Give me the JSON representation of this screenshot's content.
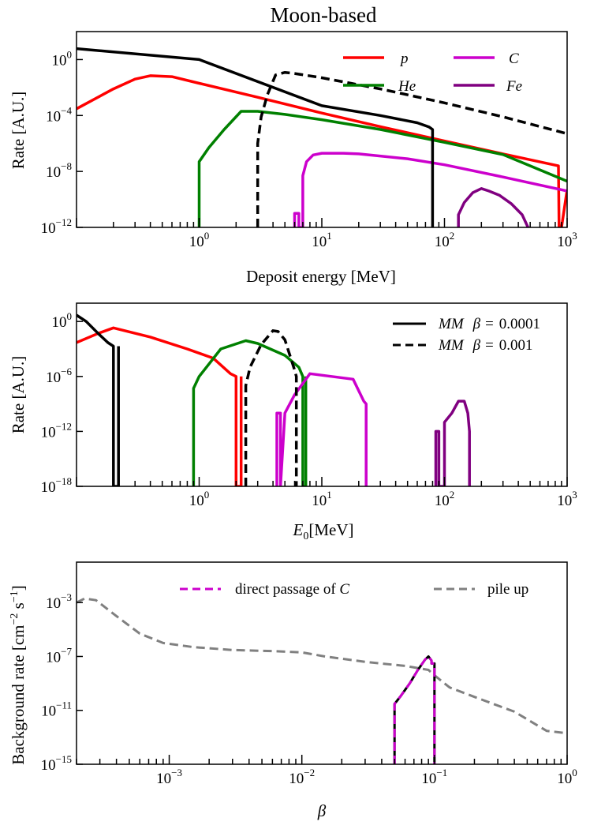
{
  "figure_title": "Moon-based",
  "chart_data": [
    {
      "type": "line",
      "xlabel": "Deposit energy [MeV]",
      "ylabel": "Rate [A.U.]",
      "xscale": "log",
      "yscale": "log",
      "xlim": [
        0.1,
        1000
      ],
      "ylim": [
        1e-12,
        100
      ],
      "xticks": [
        {
          "value": 1,
          "label": "10^0"
        },
        {
          "value": 10,
          "label": "10^1"
        },
        {
          "value": 100,
          "label": "10^2"
        },
        {
          "value": 1000,
          "label": "10^3"
        }
      ],
      "yticks": [
        {
          "value": 1,
          "label": "10^0"
        },
        {
          "value": 0.0001,
          "label": "10^-4"
        },
        {
          "value": 1e-08,
          "label": "10^-8"
        },
        {
          "value": 1e-12,
          "label": "10^-12"
        }
      ],
      "legend_position": "top-right",
      "legend_columns": 2,
      "series": [
        {
          "name": "p",
          "color": "#ff0000",
          "style": "solid",
          "x": [
            0.1,
            0.2,
            0.3,
            0.4,
            0.6,
            1,
            3,
            10,
            30,
            100,
            300,
            850,
            860,
            900,
            1000
          ],
          "y": [
            0.0003,
            0.008,
            0.04,
            0.07,
            0.06,
            0.02,
            0.002,
            0.00015,
            1.6e-05,
            1.5e-06,
            1.8e-07,
            2.5e-08,
            1e-12,
            1e-12,
            5e-10
          ]
        },
        {
          "name": "He",
          "color": "#008000",
          "style": "solid",
          "x": [
            1,
            1,
            1.2,
            1.6,
            2.2,
            3,
            5,
            10,
            30,
            100,
            300,
            1000
          ],
          "y": [
            1e-12,
            5e-08,
            5e-07,
            1e-05,
            0.0002,
            0.0002,
            0.00012,
            5e-05,
            1e-05,
            1.2e-06,
            1.6e-07,
            2e-09
          ]
        },
        {
          "name": "C",
          "color": "#cc00cc",
          "style": "solid",
          "x": [
            6,
            6,
            6.5,
            6.5,
            7,
            7,
            7.5,
            8.5,
            10,
            15,
            20,
            50,
            100,
            300,
            1000
          ],
          "y": [
            1e-12,
            1e-11,
            1e-11,
            1e-12,
            1e-12,
            5e-09,
            5e-08,
            1.5e-07,
            2e-07,
            2e-07,
            1.8e-07,
            8e-08,
            3e-08,
            4e-09,
            4e-10
          ]
        },
        {
          "name": "Fe",
          "color": "#800080",
          "style": "solid",
          "x": [
            130,
            130,
            145,
            170,
            200,
            230,
            280,
            350,
            430,
            480,
            490
          ],
          "y": [
            1e-12,
            8e-12,
            6e-11,
            3e-10,
            6e-10,
            4e-10,
            2e-10,
            5e-11,
            8e-12,
            1e-12,
            1e-12
          ]
        },
        {
          "name": "MM beta=0.0001",
          "color": "#000000",
          "style": "solid",
          "x": [
            0.1,
            1,
            10,
            30,
            60,
            75,
            80,
            80
          ],
          "y": [
            6,
            1,
            0.0005,
            0.0001,
            3e-05,
            1.5e-05,
            1e-05,
            1e-12
          ]
        },
        {
          "name": "MM beta=0.001",
          "color": "#000000",
          "style": "dashed",
          "x": [
            3,
            3,
            3.2,
            3.6,
            4.2,
            5,
            6,
            10,
            30,
            100,
            300,
            1000
          ],
          "y": [
            1e-12,
            1e-06,
            8e-05,
            0.003,
            0.08,
            0.12,
            0.1,
            0.05,
            0.008,
            0.0008,
            8e-05,
            5e-06
          ]
        }
      ]
    },
    {
      "type": "line",
      "xlabel": "E0[MeV]",
      "xlabel_main": "E",
      "xlabel_sub": "0",
      "xlabel_tail": "[MeV]",
      "ylabel": "Rate [A.U.]",
      "xscale": "log",
      "yscale": "log",
      "xlim": [
        0.1,
        1000
      ],
      "ylim": [
        1e-18,
        100
      ],
      "xticks": [
        {
          "value": 1,
          "label": "10^0"
        },
        {
          "value": 10,
          "label": "10^1"
        },
        {
          "value": 100,
          "label": "10^2"
        },
        {
          "value": 1000,
          "label": "10^3"
        }
      ],
      "yticks": [
        {
          "value": 1,
          "label": "10^0"
        },
        {
          "value": 1e-06,
          "label": "10^-6"
        },
        {
          "value": 1e-12,
          "label": "10^-12"
        },
        {
          "value": 1e-18,
          "label": "10^-18"
        }
      ],
      "legend_position": "top-right",
      "legend_entries": [
        {
          "mm": "MM",
          "beta": "β =",
          "value": "0.0001",
          "style": "solid"
        },
        {
          "mm": "MM",
          "beta": "β =",
          "value": "0.001",
          "style": "dashed"
        }
      ],
      "series": [
        {
          "name": "p",
          "color": "#ff0000",
          "style": "solid",
          "x": [
            0.1,
            0.15,
            0.2,
            0.4,
            0.8,
            1.3,
            1.8,
            2,
            2,
            2.2,
            2.2
          ],
          "y": [
            0.005,
            0.05,
            0.2,
            0.02,
            0.001,
            0.0001,
            2e-06,
            1e-06,
            1e-18,
            1e-18,
            1e-06
          ]
        },
        {
          "name": "He",
          "color": "#008000",
          "style": "solid",
          "x": [
            0.9,
            0.9,
            1,
            1.5,
            2.4,
            3,
            5,
            6.5,
            7,
            7,
            7.4,
            7.4
          ],
          "y": [
            1e-18,
            5e-08,
            1e-06,
            0.001,
            0.008,
            0.004,
            0.0002,
            1e-05,
            1e-06,
            1e-18,
            1e-18,
            1e-06
          ]
        },
        {
          "name": "C",
          "color": "#cc00cc",
          "style": "solid",
          "x": [
            4.3,
            4.3,
            4.6,
            4.6,
            5,
            6,
            8,
            12,
            18,
            22,
            23,
            23
          ],
          "y": [
            1e-18,
            1e-10,
            1e-10,
            1e-18,
            1e-10,
            1e-08,
            2e-06,
            1e-06,
            5e-07,
            2e-09,
            1e-09,
            1e-18
          ]
        },
        {
          "name": "Fe",
          "color": "#800080",
          "style": "solid",
          "x": [
            85,
            85,
            90,
            90,
            100,
            100,
            115,
            130,
            145,
            155,
            160,
            160
          ],
          "y": [
            1e-18,
            1e-12,
            1e-12,
            1e-18,
            1e-18,
            1e-11,
            1e-10,
            2e-09,
            2e-09,
            1e-10,
            1e-12,
            1e-18
          ]
        },
        {
          "name": "MM beta=0.0001",
          "color": "#000000",
          "style": "solid",
          "x": [
            0.1,
            0.12,
            0.15,
            0.18,
            0.2,
            0.2,
            0.22,
            0.22
          ],
          "y": [
            5,
            1,
            0.05,
            0.005,
            0.002,
            1e-18,
            1e-18,
            0.002
          ]
        },
        {
          "name": "MM beta=0.001",
          "color": "#000000",
          "style": "dashed",
          "x": [
            2.4,
            2.4,
            2.6,
            3.2,
            4,
            4.4,
            5,
            6,
            6.2,
            6.2
          ],
          "y": [
            1e-18,
            1e-07,
            1e-05,
            0.003,
            0.1,
            0.08,
            0.01,
            5e-06,
            1e-06,
            1e-18
          ]
        }
      ]
    },
    {
      "type": "line",
      "xlabel": "β",
      "ylabel": "Background rate [cm^-2 s^-1]",
      "ylabel_parts": {
        "main": "Background rate [cm",
        "exp1": "−2",
        "mid": " s",
        "exp2": "−1",
        "end": "]"
      },
      "xscale": "log",
      "yscale": "log",
      "xlim": [
        0.0002,
        1
      ],
      "ylim": [
        1e-15,
        1
      ],
      "xticks": [
        {
          "value": 0.001,
          "label": "10^-3"
        },
        {
          "value": 0.01,
          "label": "10^-2"
        },
        {
          "value": 0.1,
          "label": "10^-1"
        },
        {
          "value": 1,
          "label": "10^0"
        }
      ],
      "yticks": [
        {
          "value": 0.001,
          "label": "10^-3"
        },
        {
          "value": 1e-07,
          "label": "10^-7"
        },
        {
          "value": 1e-11,
          "label": "10^-11"
        },
        {
          "value": 1e-15,
          "label": "10^-15"
        }
      ],
      "legend_position": "top",
      "legend_entries": [
        {
          "label": "direct passage of ",
          "label_it": "C",
          "color": "#cc00cc",
          "style": "dashed"
        },
        {
          "label": "pile up",
          "label_it": "",
          "color": "#808080",
          "style": "dashed"
        }
      ],
      "series": [
        {
          "name": "pile up",
          "color": "#808080",
          "style": "dashed",
          "width": 3,
          "x": [
            0.0002,
            0.00023,
            0.00028,
            0.0004,
            0.0006,
            0.0009,
            0.0015,
            0.003,
            0.006,
            0.01,
            0.015,
            0.03,
            0.06,
            0.09,
            0.1,
            0.13,
            0.2,
            0.4,
            0.7,
            1
          ],
          "y": [
            0.001,
            0.002,
            0.0015,
            0.0001,
            5e-06,
            1e-06,
            5e-07,
            3e-07,
            2.5e-07,
            2e-07,
            1e-07,
            4e-08,
            2e-08,
            1e-08,
            4e-09,
            5e-10,
            1e-10,
            8e-12,
            3e-13,
            2e-13
          ]
        },
        {
          "name": "direct passage of C (outline)",
          "color": "#000000",
          "style": "solid",
          "width": 3,
          "x": [
            0.05,
            0.05,
            0.055,
            0.065,
            0.075,
            0.085,
            0.09,
            0.095,
            0.095,
            0.1,
            0.1
          ],
          "y": [
            1e-15,
            3e-11,
            1e-10,
            1e-09,
            1e-08,
            6e-08,
            1e-07,
            5e-08,
            3e-08,
            3e-08,
            1e-15
          ]
        },
        {
          "name": "direct passage of C",
          "color": "#cc00cc",
          "style": "dashed",
          "width": 3,
          "x": [
            0.05,
            0.05,
            0.055,
            0.065,
            0.075,
            0.085,
            0.09,
            0.095,
            0.095,
            0.1,
            0.1
          ],
          "y": [
            1e-15,
            3e-11,
            1e-10,
            1e-09,
            1e-08,
            6e-08,
            1e-07,
            5e-08,
            3e-08,
            3e-08,
            1e-15
          ]
        }
      ]
    }
  ],
  "top_legend": [
    {
      "label": "p",
      "color": "#ff0000"
    },
    {
      "label": "C",
      "color": "#cc00cc"
    },
    {
      "label": "He",
      "color": "#008000"
    },
    {
      "label": "Fe",
      "color": "#800080"
    }
  ]
}
